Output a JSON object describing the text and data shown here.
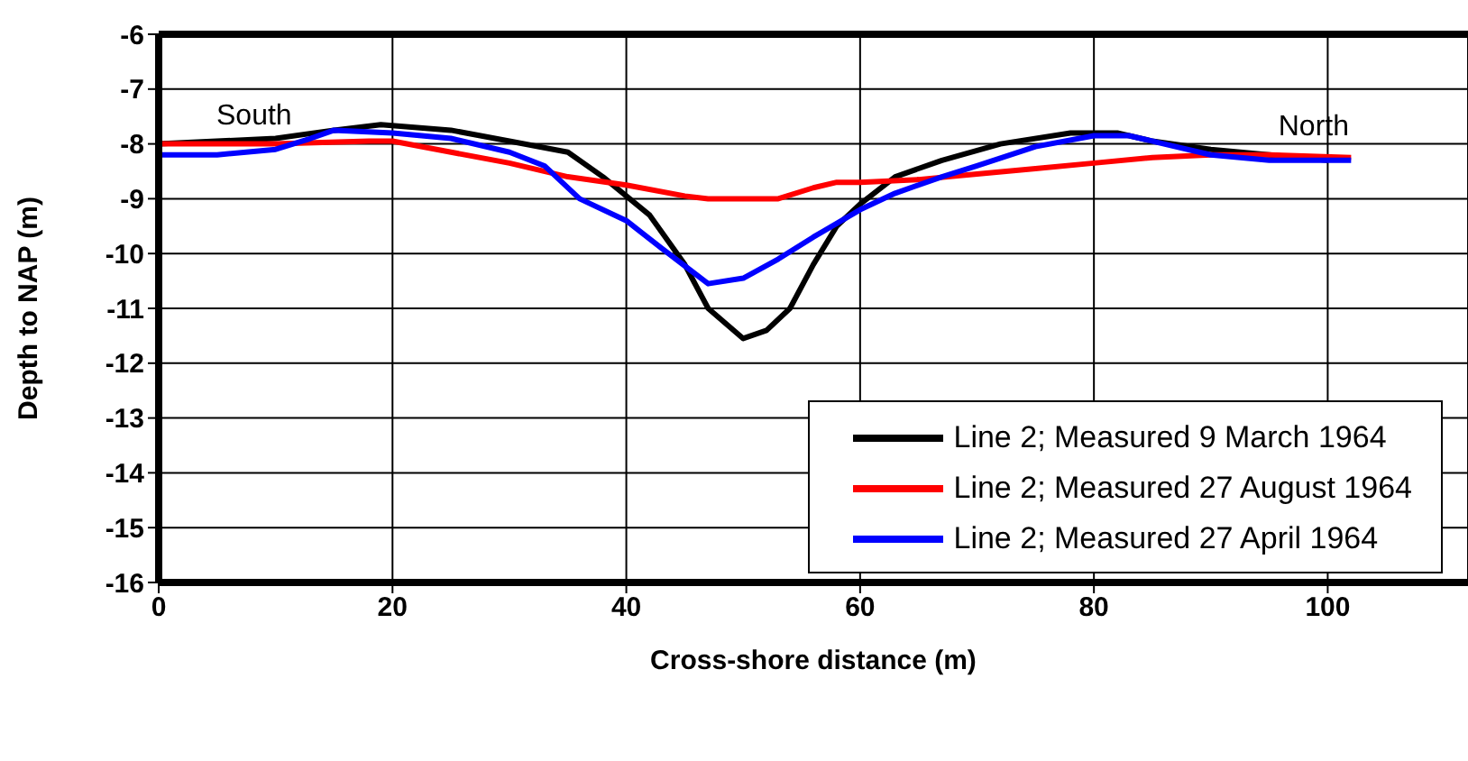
{
  "chart_data": {
    "type": "line",
    "xlabel": "Cross-shore distance (m)",
    "ylabel": "Depth to NAP (m)",
    "xlim": [
      0,
      112
    ],
    "xticks": [
      0,
      20,
      40,
      60,
      80,
      100
    ],
    "ylim": [
      -16,
      -6
    ],
    "yticks": [
      -16,
      -15,
      -14,
      -13,
      -12,
      -11,
      -10,
      -9,
      -8,
      -7,
      -6
    ],
    "grid": true,
    "legend": "bottom right",
    "marker": "none",
    "line_style": "solid",
    "annotations": [
      "South",
      "North"
    ],
    "series": [
      {
        "name": "Line 2; Measured 9 March 1964",
        "color": "#000000",
        "x": [
          0,
          10,
          15,
          19,
          25,
          30,
          35,
          38,
          42,
          45,
          47,
          50,
          52,
          54,
          56,
          58,
          60,
          63,
          67,
          72,
          78,
          82,
          85,
          90,
          95,
          100
        ],
        "values": [
          -8.0,
          -7.9,
          -7.75,
          -7.65,
          -7.75,
          -7.95,
          -8.15,
          -8.6,
          -9.3,
          -10.2,
          -11.0,
          -11.55,
          -11.4,
          -11.0,
          -10.2,
          -9.5,
          -9.1,
          -8.6,
          -8.3,
          -8.0,
          -7.8,
          -7.8,
          -7.95,
          -8.1,
          -8.2,
          -8.3
        ]
      },
      {
        "name": "Line 2; Measured 27 August 1964",
        "color": "#ff0000",
        "x": [
          0,
          10,
          18,
          20,
          25,
          30,
          35,
          40,
          45,
          47,
          50,
          53,
          56,
          58,
          60,
          65,
          70,
          75,
          80,
          85,
          90,
          95,
          102
        ],
        "values": [
          -8.0,
          -8.0,
          -7.95,
          -7.95,
          -8.15,
          -8.35,
          -8.6,
          -8.75,
          -8.95,
          -9.0,
          -9.0,
          -9.0,
          -8.8,
          -8.7,
          -8.7,
          -8.65,
          -8.55,
          -8.45,
          -8.35,
          -8.25,
          -8.2,
          -8.2,
          -8.25
        ]
      },
      {
        "name": "Line 2; Measured 27 April 1964",
        "color": "#0000ff",
        "x": [
          0,
          5,
          10,
          13,
          15,
          20,
          25,
          30,
          33,
          36,
          40,
          43,
          47,
          50,
          53,
          56,
          60,
          63,
          67,
          70,
          75,
          80,
          83,
          86,
          90,
          95,
          102
        ],
        "values": [
          -8.2,
          -8.2,
          -8.1,
          -7.9,
          -7.75,
          -7.8,
          -7.9,
          -8.15,
          -8.4,
          -9.0,
          -9.4,
          -9.9,
          -10.55,
          -10.45,
          -10.1,
          -9.7,
          -9.2,
          -8.9,
          -8.6,
          -8.4,
          -8.05,
          -7.85,
          -7.85,
          -8.0,
          -8.2,
          -8.3,
          -8.3
        ]
      }
    ]
  }
}
